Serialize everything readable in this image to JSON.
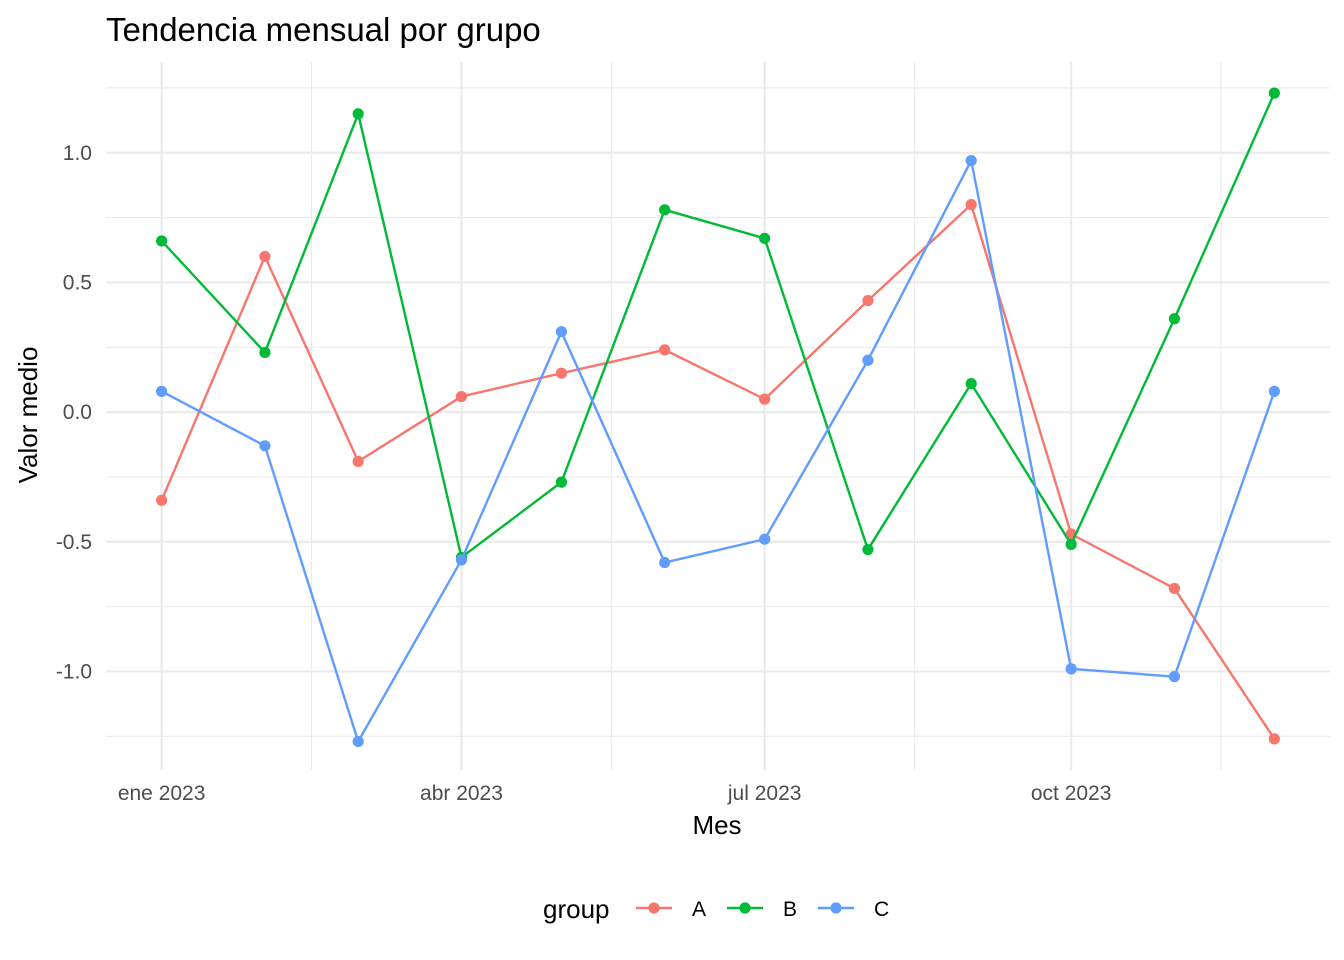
{
  "chart_data": {
    "type": "line",
    "title": "Tendencia mensual por grupo",
    "xlabel": "Mes",
    "ylabel": "Valor medio",
    "x": [
      "2023-01",
      "2023-02",
      "2023-03",
      "2023-04",
      "2023-05",
      "2023-06",
      "2023-07",
      "2023-08",
      "2023-09",
      "2023-10",
      "2023-11",
      "2023-12"
    ],
    "x_ticks": [
      {
        "month": "2023-01",
        "label": "ene 2023"
      },
      {
        "month": "2023-04",
        "label": "abr 2023"
      },
      {
        "month": "2023-07",
        "label": "jul 2023"
      },
      {
        "month": "2023-10",
        "label": "oct 2023"
      }
    ],
    "y_ticks": [
      {
        "value": -1.0,
        "label": "-1.0"
      },
      {
        "value": -0.5,
        "label": "-0.5"
      },
      {
        "value": 0.0,
        "label": "0.0"
      },
      {
        "value": 0.5,
        "label": "0.5"
      },
      {
        "value": 1.0,
        "label": "1.0"
      }
    ],
    "ylim": [
      -1.38,
      1.35
    ],
    "grid": true,
    "legend": {
      "title": "group",
      "position": "bottom"
    },
    "series": [
      {
        "name": "A",
        "color": "#F8766D",
        "values": [
          -0.34,
          0.6,
          -0.19,
          0.06,
          0.15,
          0.24,
          0.05,
          0.43,
          0.8,
          -0.47,
          -0.68,
          -1.26
        ]
      },
      {
        "name": "B",
        "color": "#00BA38",
        "values": [
          0.66,
          0.23,
          1.15,
          -0.56,
          -0.27,
          0.78,
          0.67,
          -0.53,
          0.11,
          -0.51,
          0.36,
          1.23
        ]
      },
      {
        "name": "C",
        "color": "#619CFF",
        "values": [
          0.08,
          -0.13,
          -1.27,
          -0.57,
          0.31,
          -0.58,
          -0.49,
          0.2,
          0.97,
          -0.99,
          -1.02,
          0.08
        ]
      }
    ]
  }
}
